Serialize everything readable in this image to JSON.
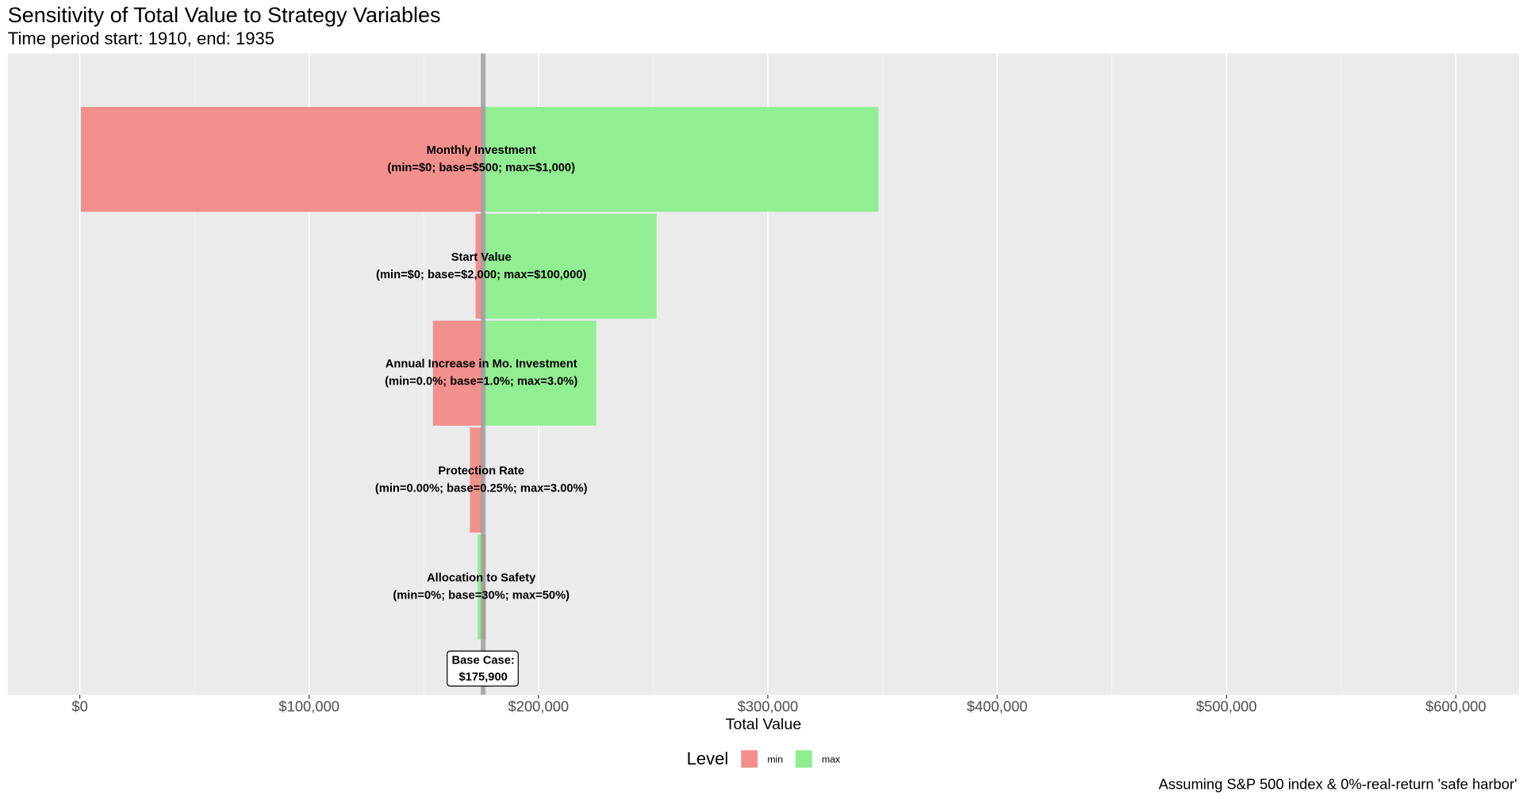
{
  "chart_data": {
    "type": "tornado",
    "title": "Sensitivity of Total Value to Strategy Variables",
    "subtitle": "Time period start: 1910, end: 1935",
    "x_label": "Total Value",
    "caption": "Assuming S&P 500 index & 0%-real-return 'safe harbor'",
    "legend_title": "Level",
    "categories": [
      "Monthly Investment",
      "Start Value",
      "Annual Increase in Mo. Investment",
      "Protection Rate",
      "Allocation to Safety"
    ],
    "range_labels": [
      "(min=$0; base=$500; max=$1,000)",
      "(min=$0; base=$2,000; max=$100,000)",
      "(min=0.0%; base=1.0%; max=3.0%)",
      "(min=0.00%; base=0.25%; max=3.00%)",
      "(min=0%; base=30%; max=50%)"
    ],
    "series": [
      {
        "name": "min",
        "color": "#f28e8c",
        "values": [
          500,
          172600,
          154000,
          170100,
          177000
        ]
      },
      {
        "name": "max",
        "color": "#90ee90",
        "values": [
          348200,
          251500,
          225200,
          176000,
          173500
        ]
      }
    ],
    "base_case": {
      "label": "Base Case:",
      "value": 175900,
      "value_label": "$175,900"
    },
    "xlim": [
      -31400,
      627600
    ],
    "xticks": [
      {
        "value": 0,
        "label": "$0"
      },
      {
        "value": 100000,
        "label": "$100,000"
      },
      {
        "value": 200000,
        "label": "$200,000"
      },
      {
        "value": 300000,
        "label": "$300,000"
      },
      {
        "value": 400000,
        "label": "$400,000"
      },
      {
        "value": 500000,
        "label": "$500,000"
      },
      {
        "value": 600000,
        "label": "$600,000"
      }
    ],
    "minor_xticks": [
      50000,
      150000,
      250000,
      350000,
      450000,
      550000
    ],
    "grid": true
  }
}
